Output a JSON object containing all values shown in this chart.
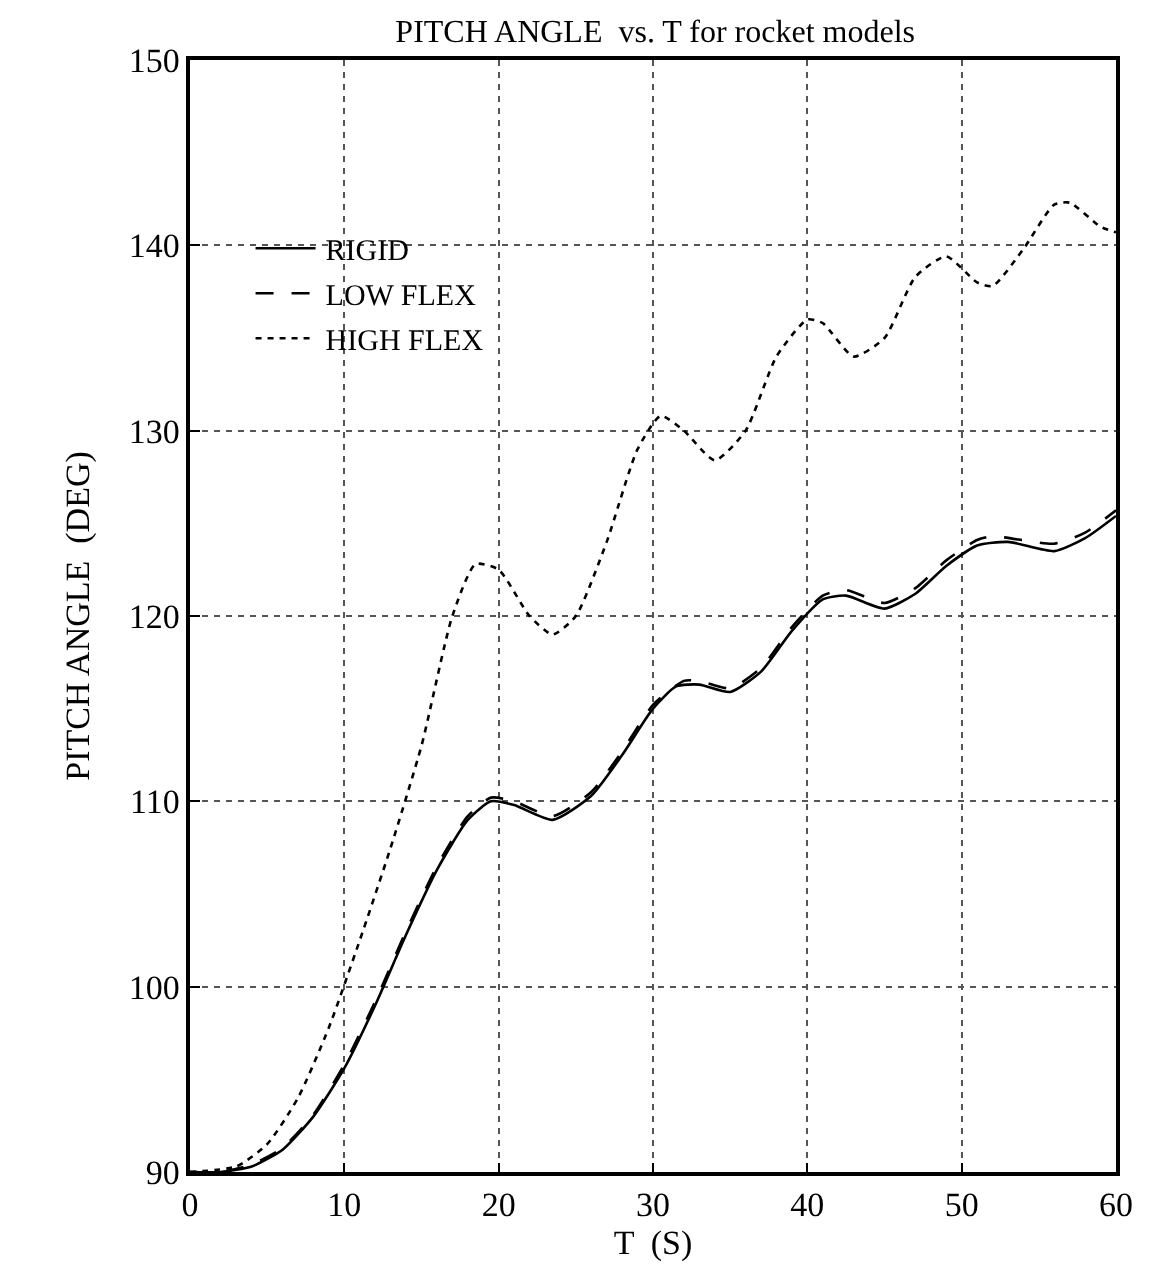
{
  "chart_data": {
    "type": "line",
    "title": "PITCH ANGLE  vs. T for rocket models",
    "xlabel": "T  (S)",
    "ylabel": "PITCH ANGLE  (DEG)",
    "xlim": [
      0,
      60
    ],
    "ylim": [
      90,
      150
    ],
    "xticks": [
      0,
      10,
      20,
      30,
      40,
      50,
      60
    ],
    "yticks": [
      90,
      100,
      110,
      120,
      130,
      140,
      150
    ],
    "grid": true,
    "legend": "top left",
    "marker": "none",
    "series": [
      {
        "name": "RIGID",
        "color": "#000000",
        "line_style": "solid",
        "x": [
          0,
          2,
          4,
          6,
          8,
          10,
          12,
          14,
          16,
          18,
          19.5,
          21,
          23.5,
          26,
          28,
          30,
          31.5,
          33,
          35,
          37,
          39,
          41,
          42.5,
          45,
          47,
          49,
          51,
          53,
          56,
          58,
          60
        ],
        "values": [
          90,
          90,
          90.3,
          91.2,
          93,
          95.6,
          99,
          102.8,
          106.3,
          109,
          110,
          109.8,
          109,
          110.3,
          112.5,
          115,
          116.2,
          116.3,
          115.9,
          117,
          119.2,
          120.9,
          121.1,
          120.4,
          121.2,
          122.7,
          123.8,
          124,
          123.5,
          124.2,
          125.4
        ]
      },
      {
        "name": "LOW FLEX",
        "color": "#000000",
        "line_style": "dashed",
        "x": [
          0,
          2,
          4,
          6,
          8,
          10,
          12,
          14,
          16,
          18,
          19.5,
          21,
          23.5,
          26,
          28,
          30,
          32,
          33,
          35,
          37,
          39,
          41,
          42.5,
          45,
          47,
          49,
          51,
          52,
          56,
          58,
          60
        ],
        "values": [
          90,
          90,
          90.4,
          91.3,
          93.1,
          95.8,
          99.2,
          103,
          106.5,
          109.2,
          110.2,
          110,
          109.2,
          110.5,
          112.7,
          115.2,
          116.5,
          116.5,
          116.1,
          117.2,
          119.4,
          121.1,
          121.4,
          120.7,
          121.5,
          123,
          124.1,
          124.3,
          123.9,
          124.5,
          125.7
        ]
      },
      {
        "name": "HIGH FLEX",
        "color": "#000000",
        "line_style": "dotted",
        "x": [
          0,
          3,
          5,
          7,
          9,
          11,
          13,
          15,
          17,
          18.5,
          20,
          22,
          23.5,
          25,
          27,
          29,
          30.5,
          32,
          34,
          36,
          38,
          40,
          41,
          43,
          45,
          47,
          49,
          51,
          52,
          54,
          56,
          57,
          59,
          60
        ],
        "values": [
          90,
          90.3,
          91.5,
          94,
          97.8,
          102.5,
          107.5,
          113,
          120,
          122.8,
          122.5,
          120,
          119,
          120,
          124,
          129,
          130.8,
          130,
          128.4,
          130,
          134,
          136,
          135.8,
          134,
          135,
          138.3,
          139.4,
          138,
          137.8,
          139.8,
          142.2,
          142.3,
          141,
          140.7
        ]
      }
    ]
  }
}
